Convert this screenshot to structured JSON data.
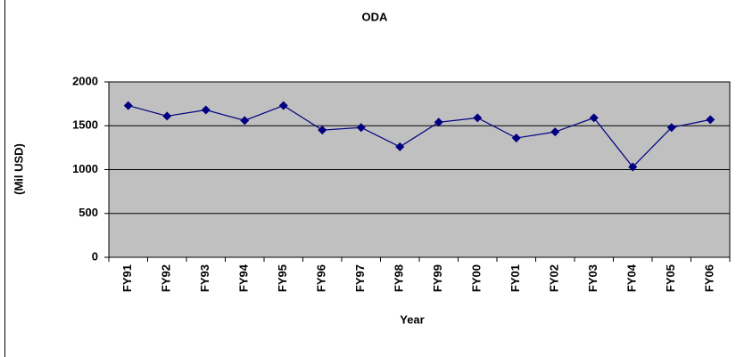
{
  "chart_data": {
    "type": "line",
    "title": "ODA",
    "x_label": "Year",
    "y_label": "(Mil USD)",
    "categories": [
      "FY91",
      "FY92",
      "FY93",
      "FY94",
      "FY95",
      "FY96",
      "FY97",
      "FY98",
      "FY99",
      "FY00",
      "FY01",
      "FY02",
      "FY03",
      "FY04",
      "FY05",
      "FY06"
    ],
    "values": [
      1730,
      1610,
      1680,
      1560,
      1730,
      1450,
      1480,
      1260,
      1540,
      1590,
      1360,
      1430,
      1590,
      1030,
      1480,
      1570
    ],
    "color": "#000080",
    "ylim": [
      0,
      2000
    ],
    "yticks": [
      0,
      500,
      1000,
      1500,
      2000
    ],
    "grid": true
  }
}
